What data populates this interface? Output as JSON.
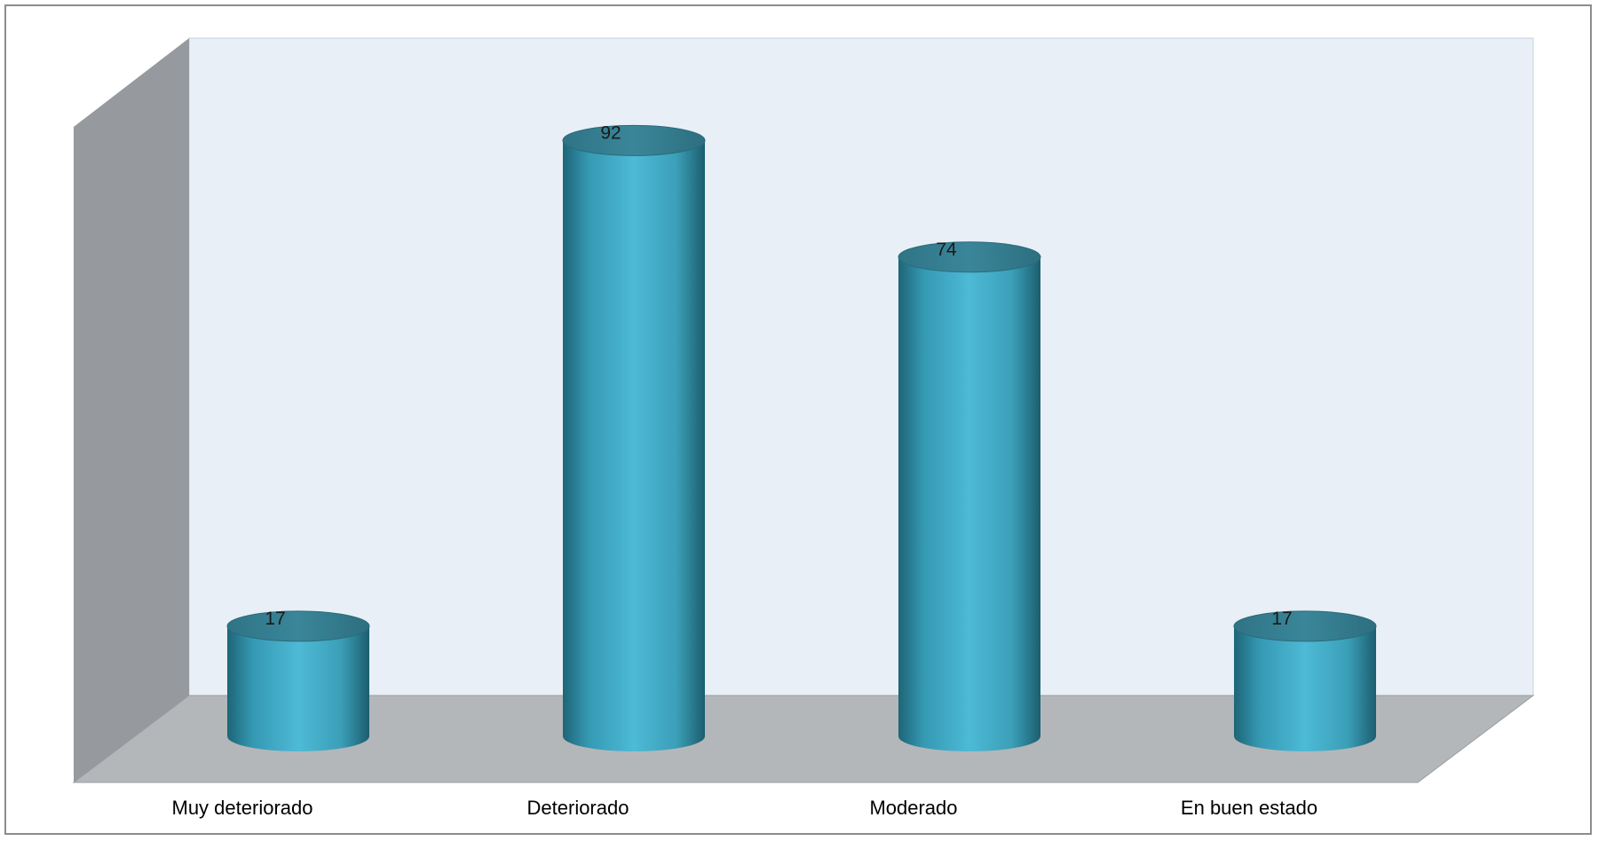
{
  "chart_data": {
    "type": "bar",
    "style": "3d-cylinder",
    "categories": [
      "Muy deteriorado",
      "Deteriorado",
      "Moderado",
      "En buen estado"
    ],
    "values": [
      17,
      92,
      74,
      17
    ],
    "data_labels": [
      "17",
      "92",
      "74",
      "17"
    ],
    "title": "",
    "xlabel": "",
    "ylabel": "",
    "ylim": [
      0,
      100
    ],
    "grid": false,
    "legend": "none",
    "colors": {
      "bar_face": "#4bb6d2",
      "bar_top": "#357f92",
      "bar_dark": "#1e6577",
      "back_wall": "#e8eff7",
      "side_wall": "#96999e",
      "floor": "#b4b7ba"
    }
  }
}
